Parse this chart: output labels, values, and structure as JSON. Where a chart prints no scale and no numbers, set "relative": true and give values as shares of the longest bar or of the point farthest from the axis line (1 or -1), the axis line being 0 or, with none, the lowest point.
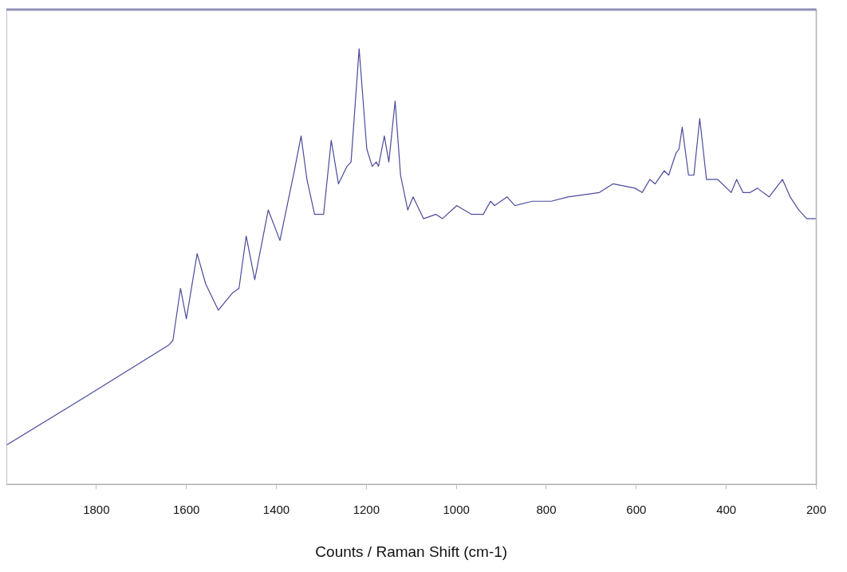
{
  "chart_data": {
    "type": "line",
    "xlabel": "Counts / Raman Shift (cm-1)",
    "relative": true,
    "xlim": [
      2000,
      200
    ],
    "xticks": [
      1800,
      1600,
      1400,
      1200,
      1000,
      800,
      600,
      400,
      200
    ],
    "grid": false,
    "legend": false,
    "marker": "none",
    "line_style": "solid",
    "series": [
      {
        "color": "#4b4b9b",
        "x": [
          2000,
          1826,
          1639,
          1630,
          1613,
          1600,
          1576,
          1557,
          1529,
          1497,
          1483,
          1467,
          1448,
          1418,
          1392,
          1360,
          1345,
          1332,
          1315,
          1295,
          1278,
          1262,
          1243,
          1234,
          1216,
          1199,
          1187,
          1178,
          1173,
          1160,
          1150,
          1136,
          1124,
          1108,
          1096,
          1073,
          1045,
          1031,
          999,
          966,
          940,
          924,
          915,
          887,
          870,
          831,
          822,
          789,
          752,
          682,
          652,
          603,
          587,
          570,
          558,
          538,
          528,
          512,
          505,
          498,
          484,
          472,
          459,
          444,
          419,
          389,
          377,
          363,
          347,
          331,
          305,
          275,
          258,
          239,
          221,
          200
        ],
        "values": [
          0.09,
          0.2,
          0.32,
          0.33,
          0.45,
          0.38,
          0.53,
          0.46,
          0.4,
          0.44,
          0.45,
          0.57,
          0.47,
          0.63,
          0.56,
          0.72,
          0.8,
          0.7,
          0.62,
          0.62,
          0.79,
          0.69,
          0.73,
          0.74,
          1.0,
          0.77,
          0.73,
          0.74,
          0.73,
          0.8,
          0.74,
          0.88,
          0.71,
          0.63,
          0.66,
          0.61,
          0.62,
          0.61,
          0.64,
          0.62,
          0.62,
          0.65,
          0.64,
          0.66,
          0.64,
          0.65,
          0.65,
          0.65,
          0.66,
          0.67,
          0.69,
          0.68,
          0.67,
          0.7,
          0.69,
          0.72,
          0.71,
          0.76,
          0.77,
          0.82,
          0.71,
          0.71,
          0.84,
          0.7,
          0.7,
          0.67,
          0.7,
          0.67,
          0.67,
          0.68,
          0.66,
          0.7,
          0.66,
          0.63,
          0.61,
          0.61
        ]
      }
    ]
  }
}
